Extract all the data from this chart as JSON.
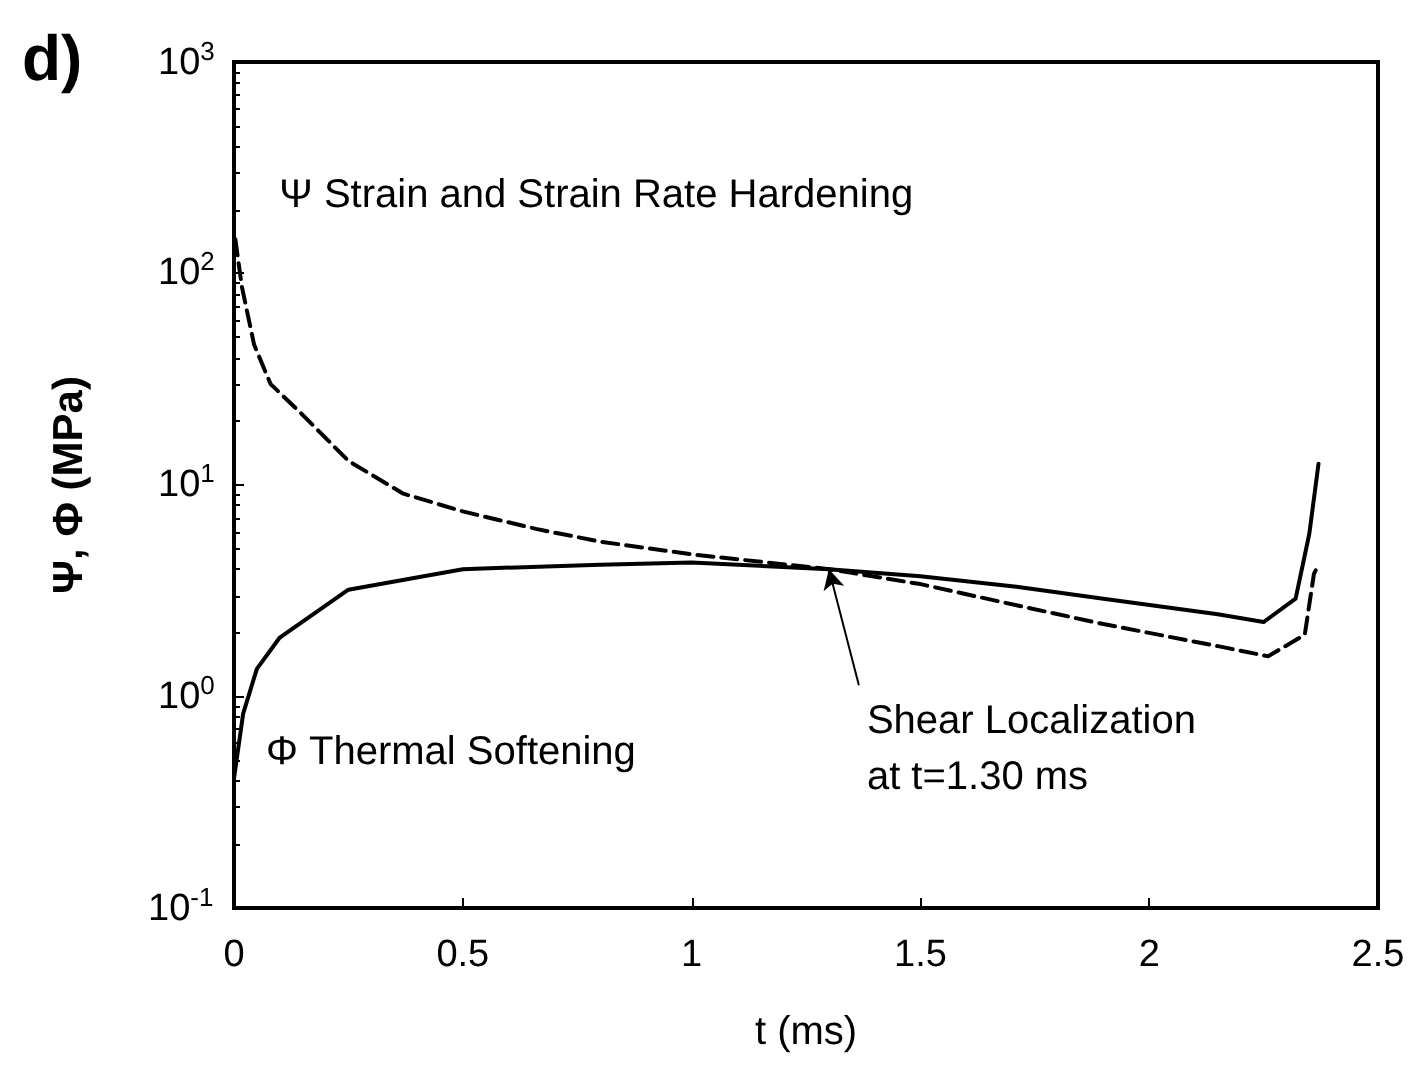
{
  "chart_data": {
    "type": "line",
    "title": "d)",
    "xlabel": "t (ms)",
    "ylabel": "Ψ, Φ (MPa)",
    "log": "y",
    "grid": false,
    "legend": false,
    "marker": "none",
    "xlim": [
      0,
      2.5
    ],
    "xticks": [
      0,
      0.5,
      1,
      1.5,
      2,
      2.5
    ],
    "ylim": [
      0.1,
      1000
    ],
    "yticks": [
      {
        "value": 0.1,
        "label": "10$^{-1}$"
      },
      {
        "value": 1,
        "label": "10$^{0}$"
      },
      {
        "value": 10,
        "label": "10$^{1}$"
      },
      {
        "value": 100,
        "label": "10$^{2}$"
      },
      {
        "value": 1000,
        "label": "10$^{3}$"
      }
    ],
    "series": [
      {
        "name": "Ψ Strain and Strain Rate Hardening",
        "color": "#000000",
        "line_style": "dashed",
        "x": [
          0.003,
          0.017,
          0.044,
          0.08,
          0.145,
          0.25,
          0.37,
          0.5,
          0.66,
          0.8,
          1.0,
          1.3,
          1.5,
          1.71,
          1.9,
          2.15,
          2.26,
          2.34,
          2.36,
          2.37
        ],
        "values": [
          145,
          87,
          46,
          30,
          22,
          13,
          9.1,
          7.5,
          6.2,
          5.4,
          4.7,
          4.0,
          3.4,
          2.7,
          2.2,
          1.73,
          1.55,
          1.96,
          3.8,
          4.2
        ]
      },
      {
        "name": "Φ Thermal Softening",
        "color": "#000000",
        "line_style": "solid",
        "x": [
          0.0,
          0.02,
          0.05,
          0.1,
          0.25,
          0.5,
          0.8,
          1.0,
          1.3,
          1.5,
          1.71,
          1.9,
          2.15,
          2.25,
          2.32,
          2.35,
          2.37
        ],
        "values": [
          0.41,
          0.83,
          1.35,
          1.9,
          3.2,
          4.0,
          4.2,
          4.3,
          4.0,
          3.7,
          3.3,
          2.9,
          2.45,
          2.25,
          2.9,
          5.9,
          12.6
        ]
      }
    ],
    "annotations": [
      {
        "text": "Shear Localization\nat t=1.30 ms",
        "x": 1.3,
        "y": 4.0
      }
    ]
  }
}
